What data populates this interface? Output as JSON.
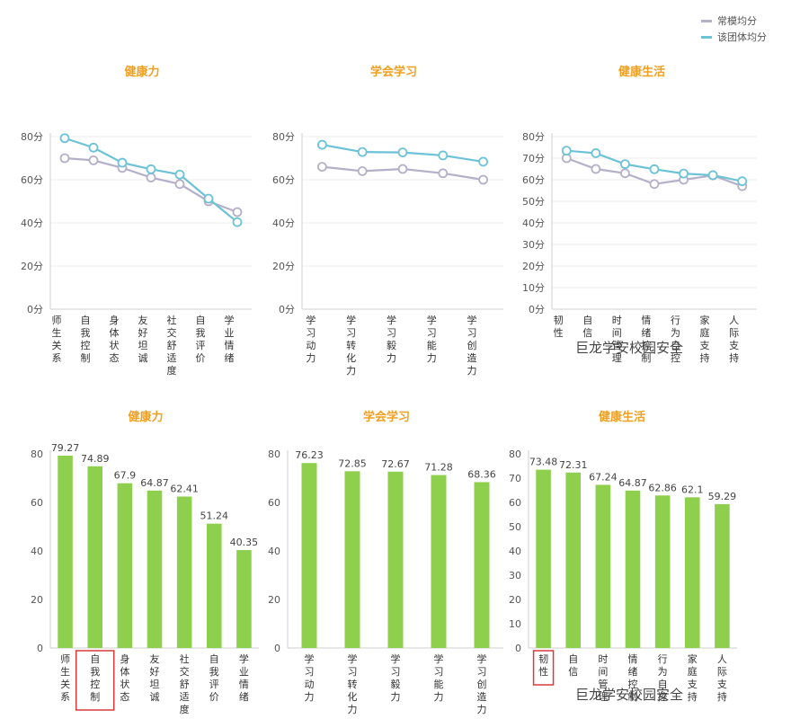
{
  "legend": {
    "items": [
      {
        "label": "常模均分",
        "color": "#b5b0c8"
      },
      {
        "label": "该团体均分",
        "color": "#6cc2d6"
      }
    ]
  },
  "watermark": {
    "text_top": "巨龙学安校园安全",
    "text_bottom": "巨龙学安校园安全"
  },
  "chart_data": [
    {
      "type": "line",
      "title": "健康力",
      "categories": [
        "师生关系",
        "自我控制",
        "身体状态",
        "友好坦诚",
        "社交舒适度",
        "自我评价",
        "学业情绪"
      ],
      "series": [
        {
          "name": "常模均分",
          "values": [
            70,
            69,
            65.5,
            61,
            58,
            50,
            45
          ]
        },
        {
          "name": "该团体均分",
          "values": [
            79.27,
            74.89,
            67.9,
            64.87,
            62.41,
            51.24,
            40.35
          ]
        }
      ],
      "ylim": [
        0,
        80
      ],
      "yticks": [
        0,
        20,
        40,
        60,
        80
      ],
      "ysuffix": "分",
      "grid": true
    },
    {
      "type": "line",
      "title": "学会学习",
      "categories": [
        "学习动力",
        "学习转化力",
        "学习毅力",
        "学习能力",
        "学习创造力"
      ],
      "series": [
        {
          "name": "常模均分",
          "values": [
            66,
            64,
            65,
            63,
            60
          ]
        },
        {
          "name": "该团体均分",
          "values": [
            76.23,
            72.85,
            72.67,
            71.28,
            68.36
          ]
        }
      ],
      "ylim": [
        0,
        80
      ],
      "yticks": [
        0,
        20,
        40,
        60,
        80
      ],
      "ysuffix": "分",
      "grid": true
    },
    {
      "type": "line",
      "title": "健康生活",
      "categories": [
        "韧性",
        "自信",
        "时间管理",
        "情绪控制",
        "行为自控",
        "家庭支持",
        "人际支持"
      ],
      "series": [
        {
          "name": "常模均分",
          "values": [
            70,
            65,
            63,
            58,
            60,
            62,
            57
          ]
        },
        {
          "name": "该团体均分",
          "values": [
            73.48,
            72.31,
            67.24,
            64.87,
            62.86,
            62.1,
            59.29
          ]
        }
      ],
      "ylim": [
        0,
        80
      ],
      "yticks": [
        0,
        10,
        20,
        30,
        40,
        50,
        60,
        70,
        80
      ],
      "ysuffix": "分",
      "grid": true
    },
    {
      "type": "bar",
      "title": "健康力",
      "categories": [
        "师生关系",
        "自我控制",
        "身体状态",
        "友好坦诚",
        "社交舒适度",
        "自我评价",
        "学业情绪"
      ],
      "values": [
        79.27,
        74.89,
        67.9,
        64.87,
        62.41,
        51.24,
        40.35
      ],
      "labels": [
        "79.27",
        "74.89",
        "67.9",
        "64.87",
        "62.41",
        "51.24",
        "40.35"
      ],
      "ylim": [
        0,
        80
      ],
      "yticks": [
        0,
        20,
        40,
        60,
        80
      ],
      "grid": false,
      "highlight": 1
    },
    {
      "type": "bar",
      "title": "学会学习",
      "categories": [
        "学习动力",
        "学习转化力",
        "学习毅力",
        "学习能力",
        "学习创造力"
      ],
      "values": [
        76.23,
        72.85,
        72.67,
        71.28,
        68.36
      ],
      "labels": [
        "76.23",
        "72.85",
        "72.67",
        "71.28",
        "68.36"
      ],
      "ylim": [
        0,
        80
      ],
      "yticks": [
        0,
        20,
        40,
        60,
        80
      ],
      "grid": false
    },
    {
      "type": "bar",
      "title": "健康生活",
      "categories": [
        "韧性",
        "自信",
        "时间管理",
        "情绪控制",
        "行为自控",
        "家庭支持",
        "人际支持"
      ],
      "values": [
        73.48,
        72.31,
        67.24,
        64.87,
        62.86,
        62.1,
        59.29
      ],
      "labels": [
        "73.48",
        "72.31",
        "67.24",
        "64.87",
        "62.86",
        "62.1",
        "59.29"
      ],
      "ylim": [
        0,
        80
      ],
      "yticks": [
        0,
        10,
        20,
        30,
        40,
        50,
        60,
        70,
        80
      ],
      "grid": false,
      "highlight": 0
    }
  ]
}
